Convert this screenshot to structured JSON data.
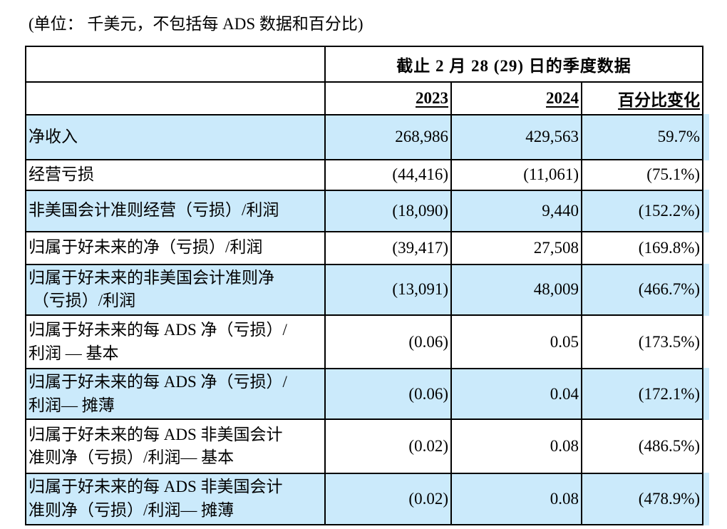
{
  "caption": "(单位： 千美元，不包括每 ADS 数据和百分比)",
  "table": {
    "span_header": "截止 2 月 28 (29)  日的季度数据",
    "col_headers": {
      "y2023": "2023",
      "y2024": "2024",
      "pct": "百分比变化"
    },
    "rows": [
      {
        "label": "净收入",
        "y2023": "268,986",
        "y2024": "429,563",
        "pct": "59.7%"
      },
      {
        "label": "经营亏损",
        "y2023": "(44,416)",
        "y2024": "(11,061)",
        "pct": "(75.1%)"
      },
      {
        "label": "非美国会计准则经营（亏损）/利润",
        "y2023": "(18,090)",
        "y2024": "9,440",
        "pct": "(152.2%)"
      },
      {
        "label": "归属于好未来的净（亏损）/利润",
        "y2023": "(39,417)",
        "y2024": "27,508",
        "pct": "(169.8%)"
      },
      {
        "label": "归属于好未来的非美国会计准则净\n （亏损）/利润",
        "y2023": "(13,091)",
        "y2024": "48,009",
        "pct": "(466.7%)"
      },
      {
        "label": "归属于好未来的每 ADS 净（亏损）/\n利润 — 基本",
        "y2023": "(0.06)",
        "y2024": "0.05",
        "pct": "(173.5%)"
      },
      {
        "label": "归属于好未来的每 ADS 净（亏损）/\n利润— 摊薄",
        "y2023": "(0.06)",
        "y2024": "0.04",
        "pct": "(172.1%)"
      },
      {
        "label": "归属于好未来的每 ADS 非美国会计\n准则净（亏损）/利润— 基本",
        "y2023": "(0.02)",
        "y2024": "0.08",
        "pct": "(486.5%)"
      },
      {
        "label": "归属于好未来的每 ADS 非美国会计\n准则净（亏损）/利润— 摊薄",
        "y2023": "(0.02)",
        "y2024": "0.08",
        "pct": "(478.9%)"
      }
    ]
  },
  "colors": {
    "row_highlight": "#cbeafb",
    "border": "#000000",
    "text": "#000000",
    "background": "#ffffff"
  }
}
